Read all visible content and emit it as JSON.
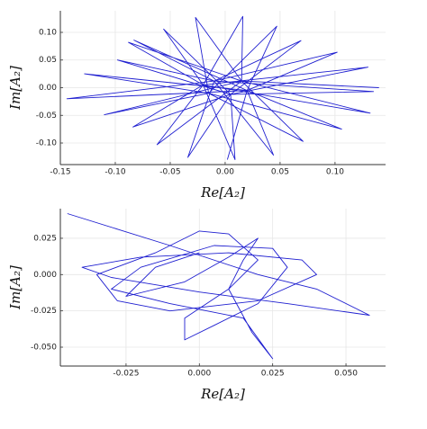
{
  "chart_data": [
    {
      "type": "line",
      "color": "#1f1fd0",
      "grid": true,
      "xlabel": "Re[A₂]",
      "ylabel": "Im[A₂]",
      "xlim": [
        -0.15,
        0.146
      ],
      "ylim": [
        -0.139,
        0.139
      ],
      "xticks": [
        {
          "value": -0.15,
          "label": "-0.15"
        },
        {
          "value": -0.1,
          "label": "-0.10"
        },
        {
          "value": -0.05,
          "label": "-0.05"
        },
        {
          "value": 0,
          "label": "0.00"
        },
        {
          "value": 0.05,
          "label": "0.05"
        },
        {
          "value": 0.1,
          "label": "0.10"
        }
      ],
      "yticks": [
        {
          "value": -0.1,
          "label": "-0.10"
        },
        {
          "value": -0.05,
          "label": "-0.05"
        },
        {
          "value": 0,
          "label": "0.00"
        },
        {
          "value": 0.05,
          "label": "0.05"
        },
        {
          "value": 0.1,
          "label": "0.10"
        }
      ],
      "x": [
        0.14,
        0.015,
        -0.088,
        -0.02,
        0.009,
        0.005,
        0.069,
        -0.01,
        -0.144,
        0.02,
        0.106,
        -0.015,
        -0.027,
        0.015,
        -0.062,
        -0.02,
        0.13,
        0.005,
        -0.098,
        -0.01,
        0.044,
        0.02,
        0.047,
        -0.015,
        -0.11,
        0.015,
        0.132,
        -0.02,
        -0.056,
        0.005,
        -0.034,
        -0.01,
        0.102,
        0.02,
        -0.128,
        -0.015,
        0.071,
        0.015,
        0.016,
        -0.02,
        -0.084,
        0.005,
        0.135,
        -0.01,
        -0.083,
        0.02,
        0.002
      ],
      "values": [
        0.0,
        0.012,
        0.082,
        0.005,
        -0.13,
        -0.012,
        0.085,
        0.012,
        -0.02,
        -0.005,
        -0.075,
        -0.01,
        0.127,
        0.012,
        -0.103,
        0.005,
        0.037,
        -0.012,
        0.05,
        0.012,
        -0.122,
        -0.005,
        0.111,
        -0.01,
        -0.049,
        0.012,
        -0.046,
        0.005,
        0.106,
        -0.012,
        -0.126,
        0.012,
        0.064,
        -0.005,
        0.025,
        -0.01,
        -0.097,
        0.012,
        0.129,
        0.005,
        -0.071,
        -0.012,
        -0.007,
        0.012,
        0.086,
        -0.005,
        -0.13
      ]
    },
    {
      "type": "line",
      "color": "#1f1fd0",
      "grid": true,
      "xlabel": "Re[A₂]",
      "ylabel": "Im[A₂]",
      "xlim": [
        -0.0474,
        0.0635
      ],
      "ylim": [
        -0.063,
        0.0454
      ],
      "xticks": [
        -0.025,
        {
          "value": 0,
          "label": "0.000"
        },
        0.025,
        {
          "value": 0.05,
          "label": "0.050"
        }
      ],
      "yticks": [
        {
          "value": -0.05,
          "label": "-0.050"
        },
        -0.025,
        {
          "value": 0,
          "label": "0.000"
        },
        0.025
      ],
      "x": [
        -0.045,
        -0.01,
        0.02,
        0.04,
        0.058,
        0.03,
        0.0,
        -0.03,
        -0.04,
        -0.02,
        0.01,
        0.035,
        0.04,
        0.02,
        -0.01,
        -0.028,
        -0.035,
        -0.015,
        0.0,
        0.01,
        0.02,
        0.01,
        -0.005,
        -0.005,
        0.005,
        0.02,
        0.03,
        0.025,
        0.005,
        -0.02,
        -0.03,
        -0.01,
        0.015,
        0.025,
        0.018,
        0.01,
        0.015,
        0.02,
        0.01,
        -0.005,
        -0.025,
        -0.015,
        0.0
      ],
      "values": [
        0.042,
        0.02,
        0.0,
        -0.01,
        -0.028,
        -0.02,
        -0.012,
        -0.002,
        0.005,
        0.012,
        0.015,
        0.01,
        0.0,
        -0.018,
        -0.025,
        -0.018,
        0.0,
        0.015,
        0.03,
        0.028,
        0.01,
        -0.01,
        -0.03,
        -0.045,
        -0.035,
        -0.02,
        0.005,
        0.018,
        0.02,
        0.005,
        -0.01,
        -0.02,
        -0.03,
        -0.058,
        -0.04,
        -0.01,
        0.01,
        0.025,
        0.012,
        -0.005,
        -0.015,
        0.005,
        0.015
      ]
    }
  ]
}
